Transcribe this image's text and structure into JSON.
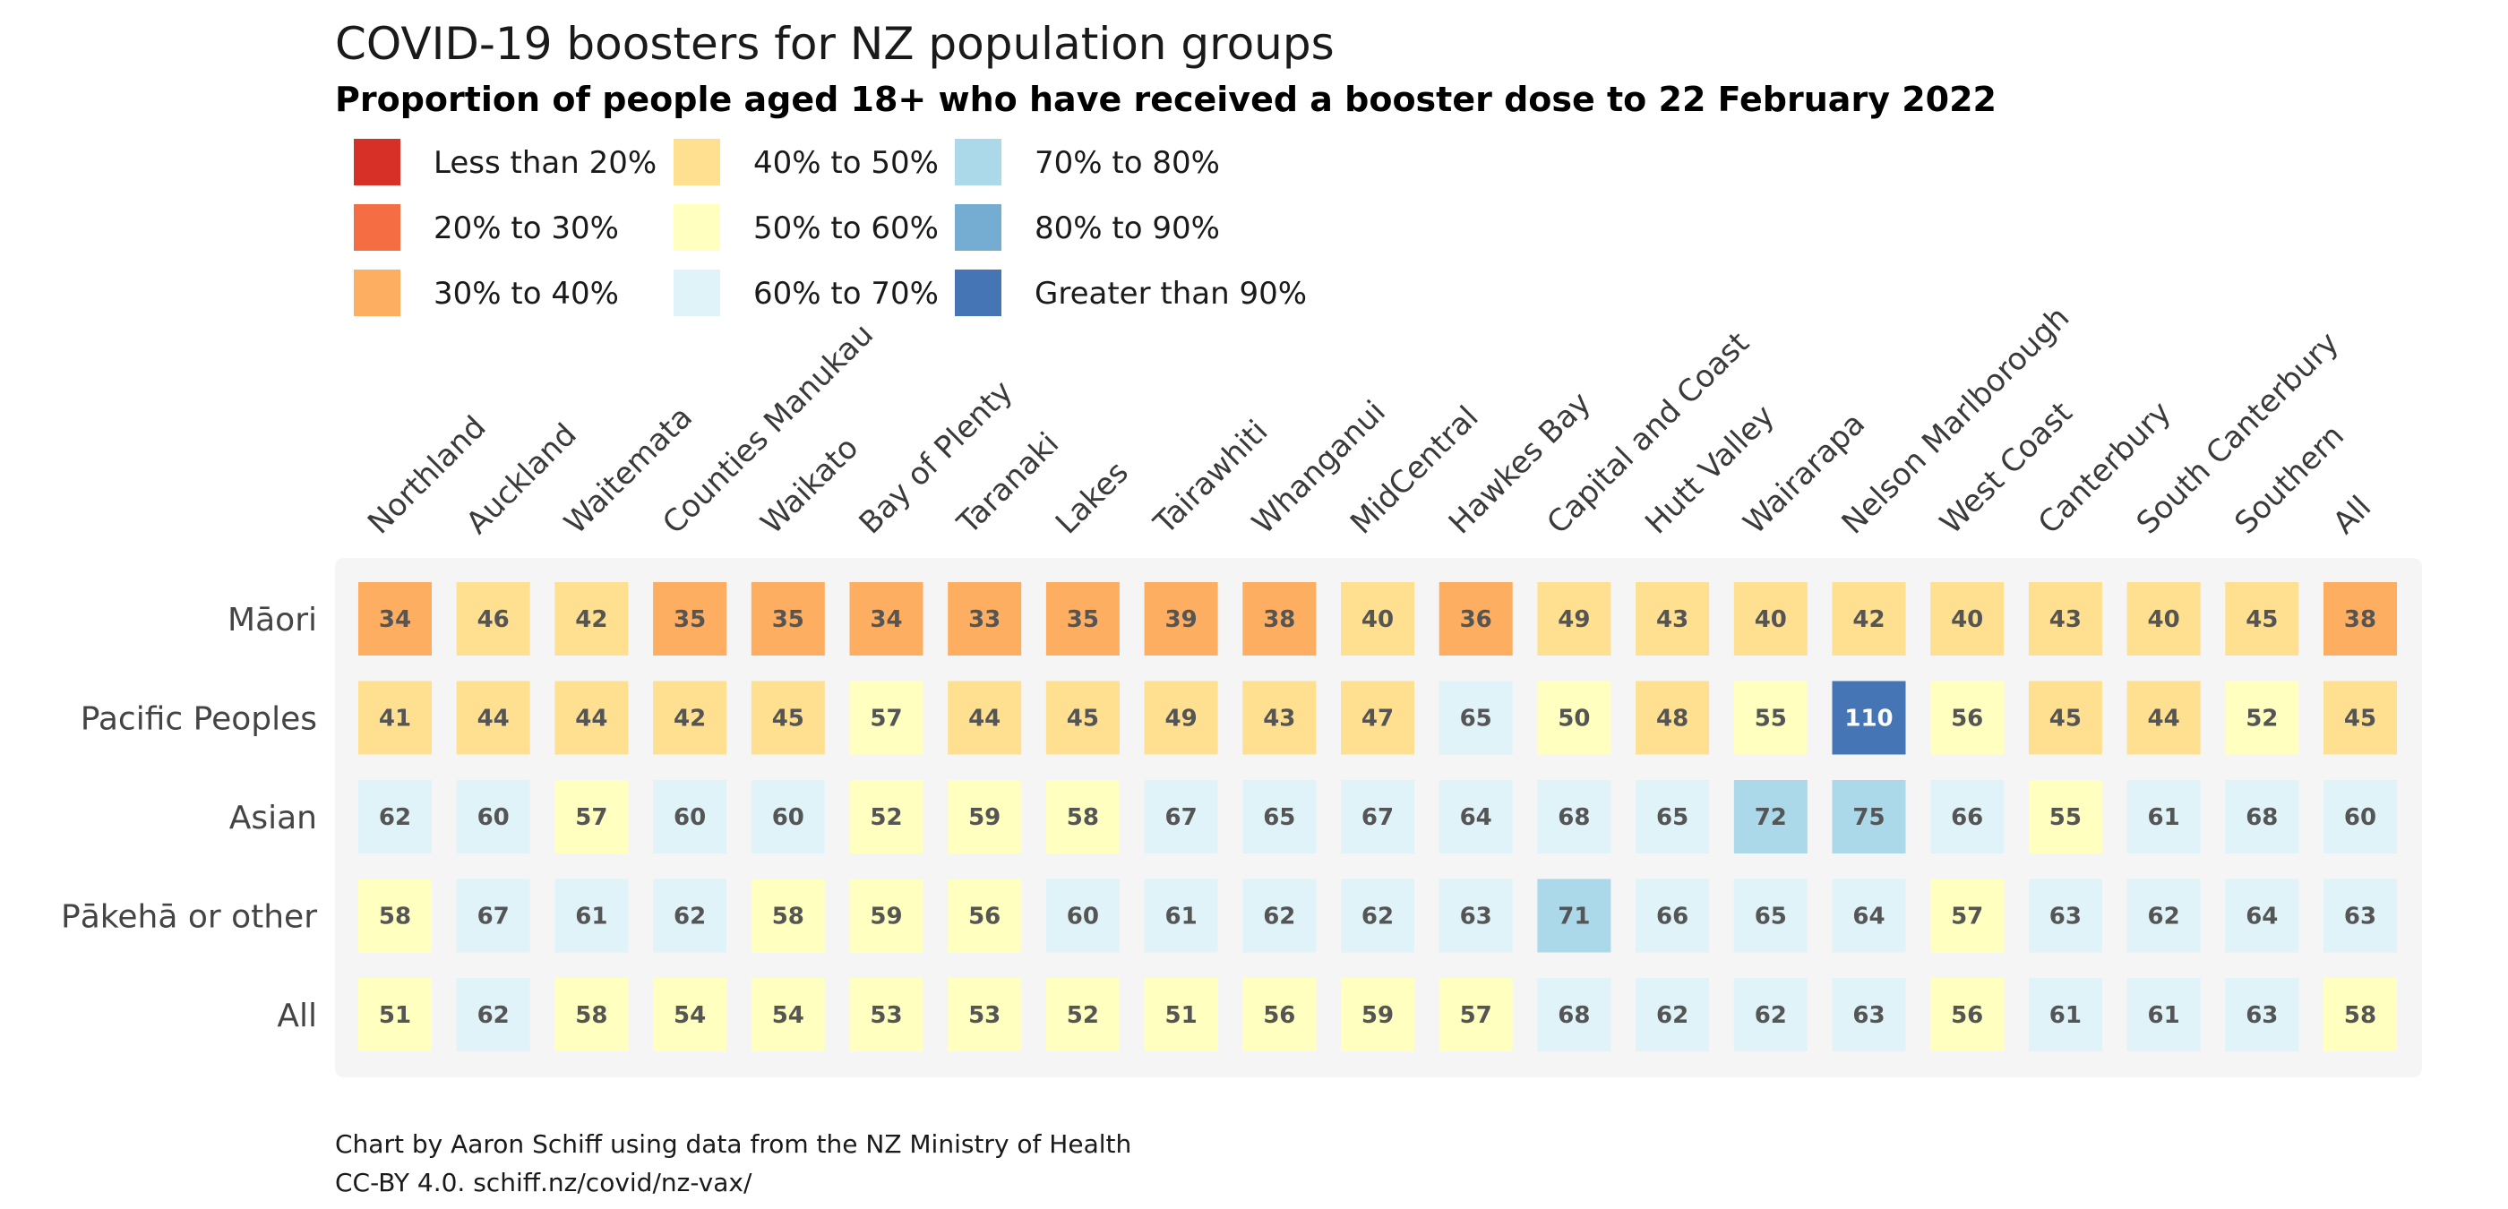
{
  "chart_data": {
    "type": "heatmap",
    "title": "COVID-19 boosters for NZ population groups",
    "subtitle": "Proportion of people aged 18+ who have received a booster dose to 22 February 2022",
    "columns": [
      "Northland",
      "Auckland",
      "Waitemata",
      "Counties Manukau",
      "Waikato",
      "Bay of Plenty",
      "Taranaki",
      "Lakes",
      "Tairawhiti",
      "Whanganui",
      "MidCentral",
      "Hawkes Bay",
      "Capital and Coast",
      "Hutt Valley",
      "Wairarapa",
      "Nelson Marlborough",
      "West Coast",
      "Canterbury",
      "South Canterbury",
      "Southern",
      "All"
    ],
    "rows": [
      "Māori",
      "Pacific Peoples",
      "Asian",
      "Pākehā or other",
      "All"
    ],
    "values": [
      [
        34,
        46,
        42,
        35,
        35,
        34,
        33,
        35,
        39,
        38,
        40,
        36,
        49,
        43,
        40,
        42,
        40,
        43,
        40,
        45,
        38
      ],
      [
        41,
        44,
        44,
        42,
        45,
        57,
        44,
        45,
        49,
        43,
        47,
        65,
        50,
        48,
        55,
        110,
        56,
        45,
        44,
        52,
        45
      ],
      [
        62,
        60,
        57,
        60,
        60,
        52,
        59,
        58,
        67,
        65,
        67,
        64,
        68,
        65,
        72,
        75,
        66,
        55,
        61,
        68,
        60
      ],
      [
        58,
        67,
        61,
        62,
        58,
        59,
        56,
        60,
        61,
        62,
        62,
        63,
        71,
        66,
        65,
        64,
        57,
        63,
        62,
        64,
        63
      ],
      [
        51,
        62,
        58,
        54,
        54,
        53,
        53,
        52,
        51,
        56,
        59,
        57,
        68,
        62,
        62,
        63,
        56,
        61,
        61,
        63,
        58
      ]
    ],
    "legend": [
      {
        "label": "Less than 20%",
        "color": "#d73027",
        "min": 0,
        "max": 20
      },
      {
        "label": "20% to 30%",
        "color": "#f46d43",
        "min": 20,
        "max": 30
      },
      {
        "label": "30% to 40%",
        "color": "#fdae61",
        "min": 30,
        "max": 40
      },
      {
        "label": "40% to 50%",
        "color": "#fee090",
        "min": 40,
        "max": 50
      },
      {
        "label": "50% to 60%",
        "color": "#ffffbf",
        "min": 50,
        "max": 60
      },
      {
        "label": "60% to 70%",
        "color": "#e0f3f8",
        "min": 60,
        "max": 70
      },
      {
        "label": "70% to 80%",
        "color": "#abd9e9",
        "min": 70,
        "max": 80
      },
      {
        "label": "80% to 90%",
        "color": "#74add1",
        "min": 80,
        "max": 90
      },
      {
        "label": "Greater than 90%",
        "color": "#4575b4",
        "min": 90,
        "max": 1000
      }
    ],
    "legend_placement": "top-left",
    "grid": false
  },
  "caption": {
    "line1": "Chart by Aaron Schiff using data from the NZ Ministry of Health",
    "line2": "CC-BY 4.0. schiff.nz/covid/nz-vax/"
  },
  "colors": {
    "panel_background": "#f5f5f5",
    "text_on_light": "#555555",
    "text_on_dark": "#ffffff"
  }
}
